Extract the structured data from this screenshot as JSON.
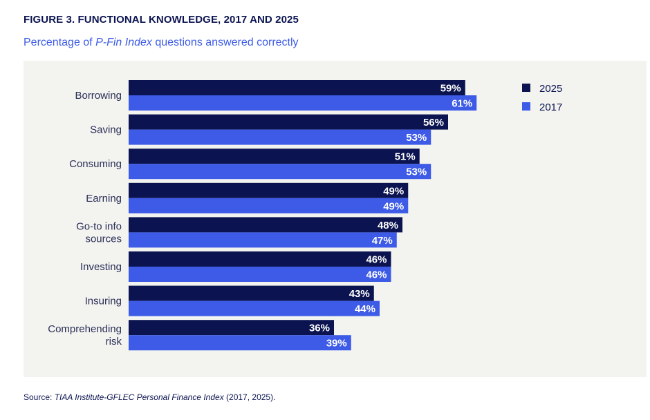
{
  "header": {
    "title": "FIGURE 3. FUNCTIONAL KNOWLEDGE, 2017 AND 2025",
    "subtitle_pre": "Percentage of ",
    "subtitle_italic": "P-Fin Index",
    "subtitle_post": " questions answered correctly"
  },
  "footer": {
    "source_label": "Source: ",
    "source_italic": "TIAA Institute-GFLEC Personal Finance Index",
    "source_post": " (2017, 2025)."
  },
  "chart_data": {
    "type": "bar",
    "orientation": "horizontal",
    "title": "FIGURE 3. FUNCTIONAL KNOWLEDGE, 2017 AND 2025",
    "subtitle": "Percentage of P-Fin Index questions answered correctly",
    "xlabel": "",
    "ylabel": "",
    "xlim": [
      0,
      100
    ],
    "grid": false,
    "legend_position": "top-right",
    "value_format": "percent",
    "categories": [
      [
        "Borrowing"
      ],
      [
        "Saving"
      ],
      [
        "Consuming"
      ],
      [
        "Earning"
      ],
      [
        "Go-to info",
        "sources"
      ],
      [
        "Investing"
      ],
      [
        "Insuring"
      ],
      [
        "Comprehending",
        "risk"
      ]
    ],
    "series": [
      {
        "name": "2025",
        "color": "#0b1450",
        "values": [
          59,
          56,
          51,
          49,
          48,
          46,
          43,
          36
        ]
      },
      {
        "name": "2017",
        "color": "#3d5be6",
        "values": [
          61,
          53,
          53,
          49,
          47,
          46,
          44,
          39
        ]
      }
    ]
  }
}
